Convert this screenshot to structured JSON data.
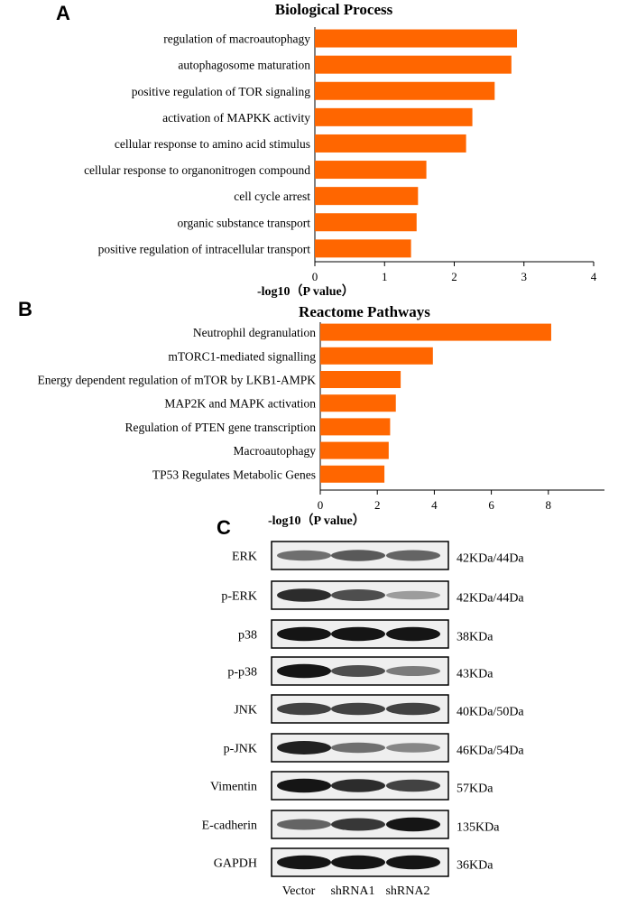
{
  "bar_color": "#ff6600",
  "panel_a": {
    "letter": "A",
    "chart_data": {
      "type": "bar",
      "orientation": "horizontal",
      "title": "Biological Process",
      "xlabel": "-log10（P value）",
      "xlim": [
        0,
        4
      ],
      "ticks": [
        "0",
        "1",
        "2",
        "3",
        "4"
      ],
      "categories": [
        "regulation of macroautophagy",
        "autophagosome maturation",
        "positive regulation of TOR signaling",
        "activation of MAPKK activity",
        "cellular response to amino acid stimulus",
        "cellular response to organonitrogen compound",
        "cell cycle arrest",
        "organic substance transport",
        "positive regulation of intracellular transport"
      ],
      "values": [
        2.9,
        2.82,
        2.58,
        2.26,
        2.17,
        1.6,
        1.48,
        1.46,
        1.38
      ],
      "grid": false
    }
  },
  "panel_b": {
    "letter": "B",
    "chart_data": {
      "type": "bar",
      "orientation": "horizontal",
      "title": "Reactome Pathways",
      "xlabel": "-log10（P value）",
      "xlim": [
        0,
        10
      ],
      "ticks": [
        "0",
        "2",
        "4",
        "6",
        "8"
      ],
      "categories": [
        "Neutrophil degranulation",
        "mTORC1-mediated signalling",
        "Energy dependent regulation  of mTOR  by LKB1-AMPK",
        "MAP2K and MAPK activation",
        "Regulation of PTEN gene transcription",
        "Macroautophagy",
        "TP53 Regulates Metabolic Genes"
      ],
      "values": [
        8.1,
        3.95,
        2.82,
        2.65,
        2.45,
        2.4,
        2.25
      ],
      "grid": false
    }
  },
  "panel_c": {
    "letter": "C",
    "blots": [
      {
        "label": "ERK",
        "size": "42KDa/44Da",
        "intensity": [
          0.55,
          0.65,
          0.6
        ]
      },
      {
        "label": "p-ERK",
        "size": "42KDa/44Da",
        "intensity": [
          0.85,
          0.7,
          0.35
        ]
      },
      {
        "label": "p38",
        "size": "38KDa",
        "intensity": [
          0.95,
          0.95,
          0.95
        ]
      },
      {
        "label": "p-p38",
        "size": "43KDa",
        "intensity": [
          0.95,
          0.7,
          0.5
        ]
      },
      {
        "label": "JNK",
        "size": "40KDa/50Da",
        "intensity": [
          0.75,
          0.75,
          0.75
        ]
      },
      {
        "label": "p-JNK",
        "size": "46KDa/54Da",
        "intensity": [
          0.9,
          0.55,
          0.45
        ]
      },
      {
        "label": "Vimentin",
        "size": "57KDa",
        "intensity": [
          0.95,
          0.85,
          0.75
        ]
      },
      {
        "label": "E-cadherin",
        "size": "135KDa",
        "intensity": [
          0.6,
          0.8,
          0.95
        ]
      },
      {
        "label": "GAPDH",
        "size": "36KDa",
        "intensity": [
          0.95,
          0.95,
          0.95
        ]
      }
    ],
    "lanes": [
      "Vector",
      "shRNA1",
      "shRNA2"
    ]
  }
}
